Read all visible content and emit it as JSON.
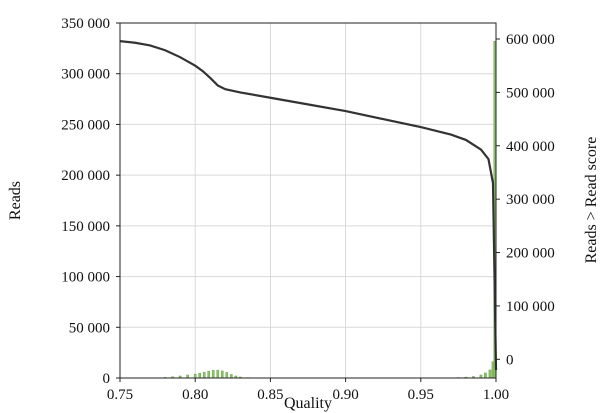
{
  "chart_data": {
    "type": "line",
    "title": "",
    "xlabel": "Quality",
    "ylabel": "Reads",
    "y2label": "Reads > Read score",
    "xlim": [
      0.75,
      1.0
    ],
    "ylim": [
      0,
      350000
    ],
    "y2lim": [
      -35000,
      630000
    ],
    "grid": true,
    "x_ticks": [
      0.75,
      0.8,
      0.85,
      0.9,
      0.95,
      1.0
    ],
    "x_tick_labels": [
      "0.75",
      "0.80",
      "0.85",
      "0.90",
      "0.95",
      "1.00"
    ],
    "y_ticks": [
      0,
      50000,
      100000,
      150000,
      200000,
      250000,
      300000,
      350000
    ],
    "y_tick_labels": [
      "0",
      "50 000",
      "100 000",
      "150 000",
      "200 000",
      "250 000",
      "300 000",
      "350 000"
    ],
    "y2_ticks": [
      0,
      100000,
      200000,
      300000,
      400000,
      500000,
      600000
    ],
    "y2_tick_labels": [
      "0",
      "100 000",
      "200 000",
      "300 000",
      "400 000",
      "500 000",
      "600 000"
    ],
    "series": [
      {
        "axis": "y2",
        "kind": "line",
        "x": [
          0.75,
          0.76,
          0.77,
          0.78,
          0.79,
          0.8,
          0.805,
          0.81,
          0.815,
          0.82,
          0.83,
          0.85,
          0.88,
          0.9,
          0.93,
          0.95,
          0.97,
          0.98,
          0.99,
          0.995,
          0.998,
          1.0
        ],
        "values": [
          596000,
          593000,
          588000,
          579000,
          566000,
          550000,
          540000,
          527000,
          513000,
          506000,
          500000,
          490000,
          475000,
          465000,
          447000,
          435000,
          421000,
          411000,
          393000,
          375000,
          330000,
          -20000
        ]
      },
      {
        "axis": "y1",
        "kind": "bar",
        "x": [
          0.775,
          0.78,
          0.785,
          0.79,
          0.795,
          0.8,
          0.803,
          0.806,
          0.809,
          0.812,
          0.815,
          0.818,
          0.821,
          0.824,
          0.827,
          0.83,
          0.835,
          0.975,
          0.98,
          0.985,
          0.99,
          0.993,
          0.996,
          0.998,
          0.9995
        ],
        "values": [
          300,
          600,
          1200,
          2000,
          3000,
          3800,
          4800,
          5800,
          6800,
          7500,
          7800,
          7000,
          5500,
          3500,
          2000,
          1000,
          400,
          500,
          900,
          1500,
          3000,
          5000,
          8000,
          16000,
          332000
        ]
      }
    ]
  }
}
